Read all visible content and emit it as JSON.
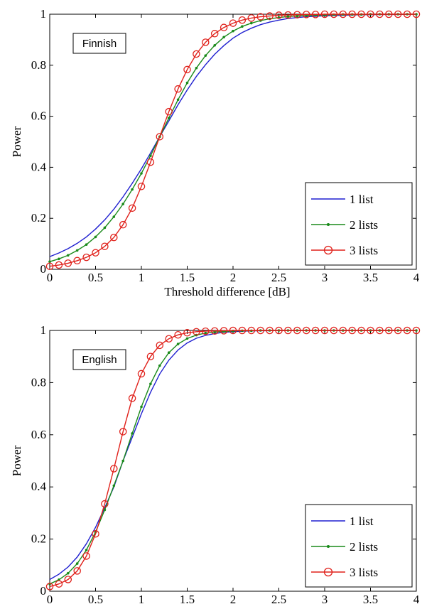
{
  "chart_data": [
    {
      "type": "line",
      "annotation": "Finnish",
      "xlabel": "Threshold difference [dB]",
      "ylabel": "Power",
      "xlim": [
        0,
        4
      ],
      "ylim": [
        0,
        1
      ],
      "xticks": [
        "0",
        "0.5",
        "1",
        "1.5",
        "2",
        "2.5",
        "3",
        "3.5",
        "4"
      ],
      "yticks": [
        "0",
        "0.2",
        "0.4",
        "0.6",
        "0.8",
        "1"
      ],
      "legend_position": "lower-right",
      "grid": false,
      "x": [
        0,
        0.1,
        0.2,
        0.3,
        0.4,
        0.5,
        0.6,
        0.7,
        0.8,
        0.9,
        1.0,
        1.1,
        1.2,
        1.3,
        1.4,
        1.5,
        1.6,
        1.7,
        1.8,
        1.9,
        2.0,
        2.1,
        2.2,
        2.3,
        2.4,
        2.5,
        2.6,
        2.7,
        2.8,
        2.9,
        3.0,
        3.1,
        3.2,
        3.3,
        3.4,
        3.5,
        3.6,
        3.7,
        3.8,
        3.9,
        4.0
      ],
      "series": [
        {
          "name": "1 list",
          "color": "#1f1fd0",
          "marker": "none",
          "values": [
            0.05,
            0.064,
            0.081,
            0.102,
            0.127,
            0.158,
            0.194,
            0.236,
            0.284,
            0.337,
            0.394,
            0.456,
            0.52,
            0.582,
            0.645,
            0.703,
            0.756,
            0.802,
            0.843,
            0.877,
            0.906,
            0.928,
            0.945,
            0.959,
            0.969,
            0.977,
            0.983,
            0.987,
            0.99,
            0.992,
            0.994,
            0.995,
            0.996,
            0.997,
            0.998,
            0.998,
            0.999,
            0.999,
            0.999,
            1.0,
            1.0
          ]
        },
        {
          "name": "2 lists",
          "color": "#1a8a1a",
          "marker": "dot",
          "values": [
            0.03,
            0.041,
            0.055,
            0.074,
            0.097,
            0.127,
            0.163,
            0.206,
            0.256,
            0.313,
            0.376,
            0.445,
            0.52,
            0.593,
            0.665,
            0.731,
            0.789,
            0.838,
            0.878,
            0.91,
            0.934,
            0.952,
            0.965,
            0.975,
            0.982,
            0.987,
            0.991,
            0.993,
            0.995,
            0.996,
            0.997,
            0.998,
            0.999,
            0.999,
            0.999,
            1.0,
            1.0,
            1.0,
            1.0,
            1.0,
            1.0
          ]
        },
        {
          "name": "3 lists",
          "color": "#e0201a",
          "marker": "circle",
          "values": [
            0.012,
            0.017,
            0.024,
            0.034,
            0.047,
            0.065,
            0.09,
            0.125,
            0.175,
            0.24,
            0.325,
            0.42,
            0.52,
            0.618,
            0.707,
            0.783,
            0.844,
            0.89,
            0.924,
            0.948,
            0.965,
            0.977,
            0.985,
            0.99,
            0.993,
            0.996,
            0.997,
            0.998,
            0.999,
            0.999,
            1.0,
            1.0,
            1.0,
            1.0,
            1.0,
            1.0,
            1.0,
            1.0,
            1.0,
            1.0,
            1.0
          ]
        }
      ]
    },
    {
      "type": "line",
      "annotation": "English",
      "xlabel": "Threshold difference [dB]",
      "ylabel": "Power",
      "xlim": [
        0,
        4
      ],
      "ylim": [
        0,
        1
      ],
      "xticks": [
        "0",
        "0.5",
        "1",
        "1.5",
        "2",
        "2.5",
        "3",
        "3.5",
        "4"
      ],
      "yticks": [
        "0",
        "0.2",
        "0.4",
        "0.6",
        "0.8",
        "1"
      ],
      "legend_position": "lower-right",
      "grid": false,
      "x": [
        0,
        0.1,
        0.2,
        0.3,
        0.4,
        0.5,
        0.6,
        0.7,
        0.8,
        0.9,
        1.0,
        1.1,
        1.2,
        1.3,
        1.4,
        1.5,
        1.6,
        1.7,
        1.8,
        1.9,
        2.0,
        2.1,
        2.2,
        2.3,
        2.4,
        2.5,
        2.6,
        2.7,
        2.8,
        2.9,
        3.0,
        3.1,
        3.2,
        3.3,
        3.4,
        3.5,
        3.6,
        3.7,
        3.8,
        3.9,
        4.0
      ],
      "series": [
        {
          "name": "1 list",
          "color": "#1f1fd0",
          "marker": "none",
          "values": [
            0.045,
            0.065,
            0.093,
            0.131,
            0.182,
            0.245,
            0.32,
            0.4,
            0.5,
            0.59,
            0.68,
            0.763,
            0.833,
            0.886,
            0.925,
            0.952,
            0.97,
            0.981,
            0.988,
            0.993,
            0.995,
            0.997,
            0.998,
            0.999,
            0.999,
            1.0,
            1.0,
            1.0,
            1.0,
            1.0,
            1.0,
            1.0,
            1.0,
            1.0,
            1.0,
            1.0,
            1.0,
            1.0,
            1.0,
            1.0,
            1.0
          ]
        },
        {
          "name": "2 lists",
          "color": "#1a8a1a",
          "marker": "dot",
          "values": [
            0.028,
            0.044,
            0.069,
            0.106,
            0.158,
            0.227,
            0.312,
            0.405,
            0.5,
            0.605,
            0.707,
            0.795,
            0.865,
            0.915,
            0.948,
            0.969,
            0.982,
            0.99,
            0.994,
            0.996,
            0.998,
            0.999,
            0.999,
            1.0,
            1.0,
            1.0,
            1.0,
            1.0,
            1.0,
            1.0,
            1.0,
            1.0,
            1.0,
            1.0,
            1.0,
            1.0,
            1.0,
            1.0,
            1.0,
            1.0,
            1.0
          ]
        },
        {
          "name": "3 lists",
          "color": "#e0201a",
          "marker": "circle",
          "values": [
            0.018,
            0.028,
            0.045,
            0.078,
            0.135,
            0.22,
            0.335,
            0.47,
            0.612,
            0.74,
            0.834,
            0.9,
            0.943,
            0.968,
            0.983,
            0.991,
            0.995,
            0.997,
            0.998,
            0.999,
            1.0,
            1.0,
            1.0,
            1.0,
            1.0,
            1.0,
            1.0,
            1.0,
            1.0,
            1.0,
            1.0,
            1.0,
            1.0,
            1.0,
            1.0,
            1.0,
            1.0,
            1.0,
            1.0,
            1.0,
            1.0
          ]
        }
      ]
    }
  ]
}
